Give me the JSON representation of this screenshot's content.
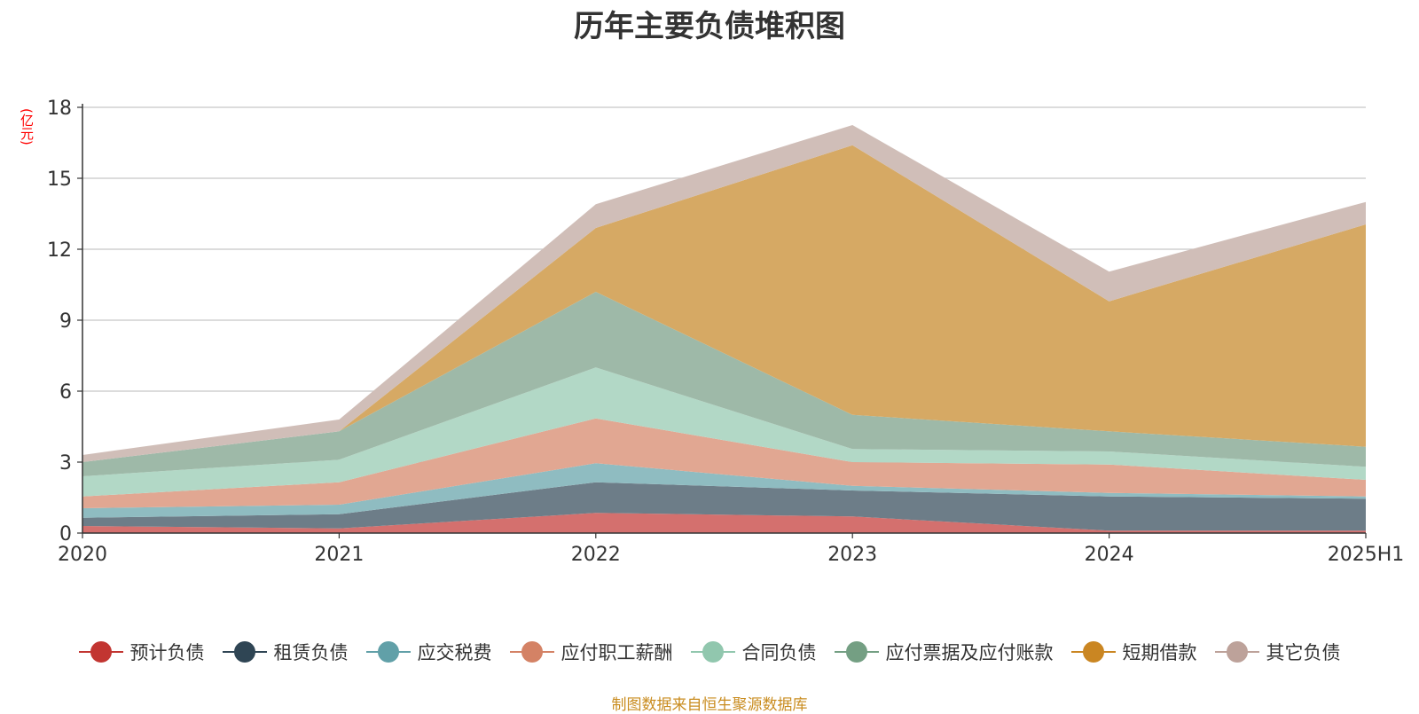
{
  "chart_data": {
    "type": "area",
    "stacked": true,
    "title": "历年主要负债堆积图",
    "unit_label": "(亿元)",
    "categories": [
      "2020",
      "2021",
      "2022",
      "2023",
      "2024",
      "2025H1"
    ],
    "ylim": [
      0,
      18
    ],
    "yticks": [
      0,
      3,
      6,
      9,
      12,
      15,
      18
    ],
    "grid": true,
    "legend_position": "bottom",
    "series": [
      {
        "name": "预计负债",
        "color": "#c23531",
        "fill": "#d4706e",
        "values": [
          0.3,
          0.2,
          0.85,
          0.7,
          0.1,
          0.1
        ]
      },
      {
        "name": "租赁负债",
        "color": "#2f4554",
        "fill": "#6d7d88",
        "values": [
          0.35,
          0.6,
          1.3,
          1.1,
          1.45,
          1.35
        ]
      },
      {
        "name": "应交税费",
        "color": "#61a0a8",
        "fill": "#8fbcc1",
        "values": [
          0.4,
          0.4,
          0.8,
          0.2,
          0.15,
          0.1
        ]
      },
      {
        "name": "应付职工薪酬",
        "color": "#d48265",
        "fill": "#e1a792",
        "values": [
          0.5,
          0.95,
          1.9,
          1.0,
          1.2,
          0.7
        ]
      },
      {
        "name": "合同负债",
        "color": "#91c7ae",
        "fill": "#b2d8c6",
        "values": [
          0.85,
          0.95,
          2.15,
          0.55,
          0.55,
          0.55
        ]
      },
      {
        "name": "应付票据及应付账款",
        "color": "#749f83",
        "fill": "#9eb9a8",
        "values": [
          0.6,
          1.2,
          3.2,
          1.45,
          0.85,
          0.85
        ]
      },
      {
        "name": "短期借款",
        "color": "#ca8622",
        "fill": "#d6a964",
        "values": [
          0,
          0,
          2.7,
          11.4,
          5.5,
          9.4
        ]
      },
      {
        "name": "其它负债",
        "color": "#bda29a",
        "fill": "#d0beb8",
        "values": [
          0.3,
          0.5,
          1.0,
          0.85,
          1.25,
          0.95
        ]
      }
    ]
  },
  "source_note": "制图数据来自恒生聚源数据库"
}
